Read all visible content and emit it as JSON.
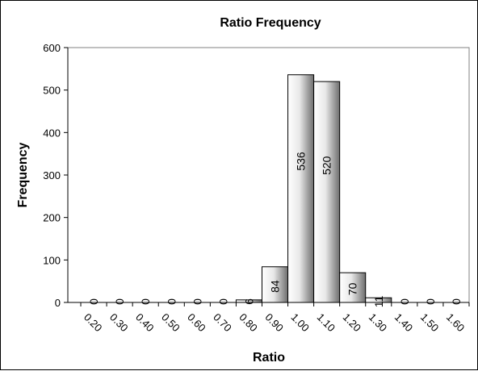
{
  "chart_data": {
    "type": "bar",
    "title": "Ratio Frequency",
    "xlabel": "Ratio",
    "ylabel": "Frequency",
    "categories": [
      "0.20",
      "0.30",
      "0.40",
      "0.50",
      "0.60",
      "0.70",
      "0.80",
      "0.90",
      "1.00",
      "1.10",
      "1.20",
      "1.30",
      "1.40",
      "1.50",
      "1.60"
    ],
    "values": [
      0,
      0,
      0,
      0,
      0,
      0,
      6,
      84,
      536,
      520,
      70,
      11,
      0,
      0,
      0
    ],
    "ylim": [
      0,
      600
    ],
    "yticks": [
      0,
      100,
      200,
      300,
      400,
      500,
      600
    ],
    "grid": false,
    "legend": "none",
    "colors": {
      "bar_light": "#f2f2f2",
      "bar_dark": "#6e6e6e",
      "plot_bg": "#ffffff",
      "plot_border": "#808080"
    }
  }
}
